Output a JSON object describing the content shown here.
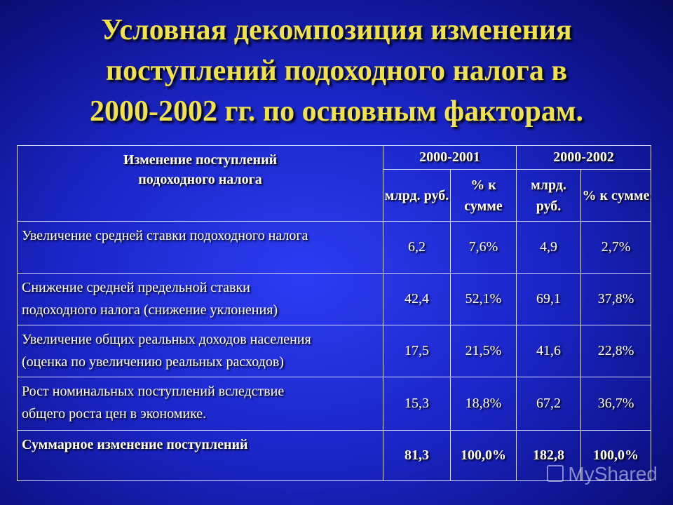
{
  "title": {
    "line1": "Условная декомпозиция изменения",
    "line2": "поступлений подоходного налога в",
    "line3": "2000-2002 гг. по основным факторам."
  },
  "table": {
    "header": {
      "line1": "Изменение поступлений",
      "line2": "подоходного налога",
      "period1": "2000-2001",
      "period2": "2000-2002",
      "unit_bln": "млрд. руб.",
      "unit_pct": "% к сумме"
    },
    "rows": [
      {
        "line1": "Увеличение средней ставки подоходного налога",
        "line2": "",
        "v1": "6,2",
        "p1": "7,6%",
        "v2": "4,9",
        "p2": "2,7%"
      },
      {
        "line1": "Снижение средней предельной ставки",
        "line2": "подоходного налога (снижение уклонения)",
        "v1": "42,4",
        "p1": "52,1%",
        "v2": "69,1",
        "p2": "37,8%"
      },
      {
        "line1": "Увеличение общих реальных доходов населения",
        "line2": "(оценка по увеличению реальных расходов)",
        "v1": "17,5",
        "p1": "21,5%",
        "v2": "41,6",
        "p2": "22,8%"
      },
      {
        "line1": "Рост номинальных поступлений вследствие",
        "line2": "общего роста цен в экономике.",
        "v1": "15,3",
        "p1": "18,8%",
        "v2": "67,2",
        "p2": "36,7%"
      }
    ],
    "total": {
      "label": "Суммарное изменение поступлений",
      "v1": "81,3",
      "p1": "100,0%",
      "v2": "182,8",
      "p2": "100,0%"
    }
  },
  "watermark": {
    "text": "MyShared"
  },
  "icons": {
    "watermark": "presentation-icon"
  }
}
